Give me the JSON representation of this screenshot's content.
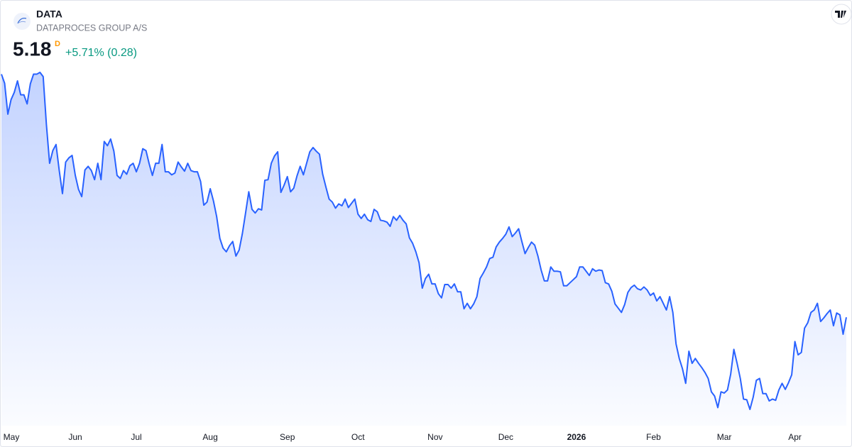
{
  "chart_data": {
    "type": "area",
    "symbol": "DATA",
    "name": "DATAPROCES GROUP A/S",
    "price": 5.18,
    "interval": "D",
    "change": "+5.71% (0.28)",
    "color": "#2962ff",
    "categories": [
      null,
      null,
      null,
      "May",
      null,
      null,
      null,
      null,
      null,
      null,
      null,
      null,
      null,
      null,
      null,
      null,
      null,
      null,
      null,
      null,
      null,
      null,
      null,
      "Jun",
      null,
      null,
      null,
      null,
      null,
      null,
      null,
      null,
      null,
      null,
      null,
      null,
      null,
      null,
      null,
      null,
      null,
      null,
      "Jul",
      null,
      null,
      null,
      null,
      null,
      null,
      null,
      null,
      null,
      null,
      null,
      null,
      null,
      null,
      null,
      null,
      null,
      null,
      null,
      null,
      null,
      null,
      "Aug",
      null,
      null,
      null,
      null,
      null,
      null,
      null,
      null,
      null,
      null,
      null,
      null,
      null,
      null,
      null,
      null,
      null,
      null,
      null,
      null,
      null,
      null,
      null,
      "Sep",
      null,
      null,
      null,
      null,
      null,
      null,
      null,
      null,
      null,
      null,
      null,
      null,
      null,
      null,
      null,
      null,
      null,
      null,
      null,
      null,
      null,
      "Oct",
      null,
      null,
      null,
      null,
      null,
      null,
      null,
      null,
      null,
      null,
      null,
      null,
      null,
      null,
      null,
      null,
      null,
      null,
      null,
      null,
      null,
      null,
      null,
      "Nov",
      null,
      null,
      null,
      null,
      null,
      null,
      null,
      null,
      null,
      null,
      null,
      null,
      null,
      null,
      null,
      null,
      null,
      null,
      null,
      null,
      null,
      "Dec",
      null,
      null,
      null,
      null,
      null,
      null,
      null,
      null,
      null,
      null,
      null,
      null,
      null,
      null,
      null,
      null,
      null,
      null,
      null,
      null,
      null,
      "2026",
      null,
      null,
      null,
      null,
      null,
      null,
      null,
      null,
      null,
      null,
      null,
      null,
      null,
      null,
      null,
      null,
      null,
      null,
      null,
      null,
      null,
      null,
      null,
      "Feb",
      null,
      null,
      null,
      null,
      null,
      null,
      null,
      null,
      null,
      null,
      null,
      null,
      null,
      null,
      null,
      null,
      null,
      null,
      null,
      null,
      null,
      "Mar",
      null,
      null,
      null,
      null,
      null,
      null,
      null,
      null,
      null,
      null,
      null,
      null,
      null,
      null,
      null,
      null,
      null,
      null,
      null,
      null,
      null,
      "Apr",
      null,
      null,
      null,
      null,
      null,
      null,
      null,
      null,
      null,
      null,
      null,
      null,
      null,
      null,
      null,
      null
    ],
    "values": [
      9.19,
      9.04,
      8.53,
      8.77,
      8.89,
      9.08,
      8.85,
      8.85,
      8.7,
      9.03,
      9.19,
      9.19,
      9.22,
      9.15,
      8.36,
      7.72,
      7.93,
      8.03,
      7.6,
      7.22,
      7.74,
      7.81,
      7.85,
      7.52,
      7.29,
      7.17,
      7.61,
      7.67,
      7.6,
      7.45,
      7.72,
      7.45,
      8.08,
      8.01,
      8.12,
      7.92,
      7.52,
      7.47,
      7.6,
      7.54,
      7.68,
      7.72,
      7.58,
      7.72,
      7.96,
      7.93,
      7.71,
      7.52,
      7.72,
      7.72,
      8.03,
      7.58,
      7.58,
      7.53,
      7.56,
      7.74,
      7.66,
      7.59,
      7.72,
      7.6,
      7.58,
      7.58,
      7.42,
      7.03,
      7.08,
      7.3,
      7.1,
      6.84,
      6.48,
      6.32,
      6.26,
      6.36,
      6.43,
      6.19,
      6.29,
      6.56,
      6.9,
      7.25,
      6.96,
      6.9,
      6.97,
      6.95,
      7.44,
      7.45,
      7.72,
      7.84,
      7.91,
      7.24,
      7.36,
      7.5,
      7.25,
      7.31,
      7.51,
      7.67,
      7.53,
      7.72,
      7.91,
      7.98,
      7.92,
      7.87,
      7.54,
      7.33,
      7.13,
      7.08,
      6.98,
      7.05,
      7.02,
      7.13,
      6.99,
      7.06,
      7.13,
      6.88,
      6.81,
      6.88,
      6.79,
      6.76,
      6.96,
      6.92,
      6.78,
      6.77,
      6.75,
      6.68,
      6.84,
      6.78,
      6.86,
      6.78,
      6.72,
      6.49,
      6.4,
      6.26,
      6.08,
      5.66,
      5.82,
      5.89,
      5.73,
      5.73,
      5.57,
      5.5,
      5.72,
      5.72,
      5.66,
      5.73,
      5.6,
      5.6,
      5.32,
      5.41,
      5.32,
      5.4,
      5.52,
      5.82,
      5.91,
      6.01,
      6.15,
      6.17,
      6.34,
      6.42,
      6.48,
      6.55,
      6.67,
      6.51,
      6.57,
      6.64,
      6.43,
      6.23,
      6.33,
      6.42,
      6.37,
      6.19,
      5.96,
      5.78,
      5.78,
      6.01,
      5.94,
      5.94,
      5.93,
      5.7,
      5.7,
      5.75,
      5.8,
      5.85,
      6.01,
      6.01,
      5.94,
      5.87,
      5.98,
      5.94,
      5.96,
      5.95,
      5.75,
      5.73,
      5.61,
      5.4,
      5.33,
      5.26,
      5.39,
      5.59,
      5.67,
      5.71,
      5.65,
      5.63,
      5.68,
      5.63,
      5.54,
      5.58,
      5.45,
      5.52,
      5.41,
      5.3,
      5.52,
      5.26,
      4.74,
      4.5,
      4.33,
      4.09,
      4.62,
      4.42,
      4.5,
      4.42,
      4.35,
      4.27,
      4.17,
      3.95,
      3.88,
      3.69,
      3.95,
      3.93,
      3.98,
      4.24,
      4.65,
      4.42,
      4.17,
      3.83,
      3.82,
      3.66,
      3.86,
      4.14,
      4.17,
      3.92,
      3.92,
      3.8,
      3.83,
      3.81,
      3.98,
      4.09,
      3.99,
      4.1,
      4.23,
      4.78,
      4.56,
      4.6,
      5.0,
      5.09,
      5.26,
      5.3,
      5.41,
      5.11,
      5.17,
      5.24,
      5.3,
      5.04,
      5.25,
      5.22,
      4.9,
      5.18
    ]
  }
}
